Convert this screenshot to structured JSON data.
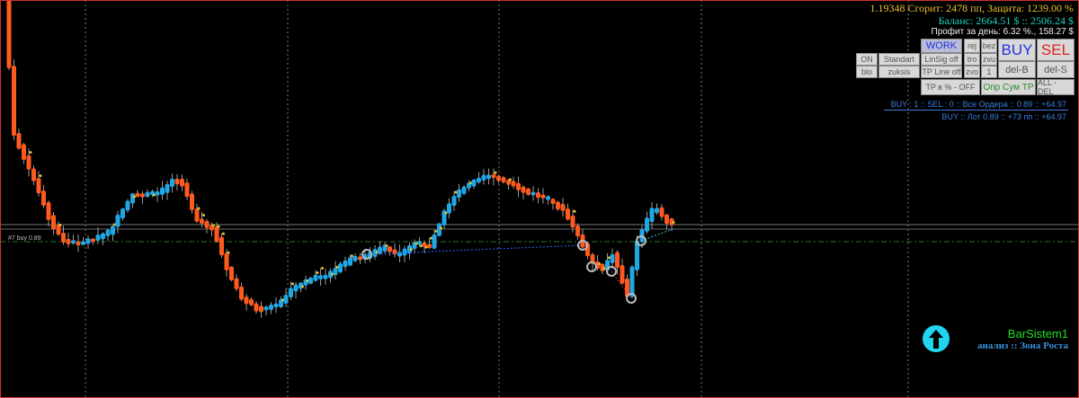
{
  "header": {
    "line1": "1.19348  Сгорит: 2478 пп, Защита: 1239.00 %",
    "line2": "Баланс: 2664.51 $   ::   2506.24 $",
    "line3": "Профит за день: 6.32 %.,  158.27 $"
  },
  "buttons": {
    "work": "WORK",
    "rej": "rej",
    "bez": "bez",
    "buy": "BUY",
    "sel": "SEL",
    "on": "ON",
    "standart": "Standart",
    "linsig": "LinSig off",
    "tro": "tro",
    "zvu": "zvu",
    "blo": "blo",
    "zuksis": "zuksis",
    "tpline": "TP Line off",
    "zvo": "zvo",
    "one": "1",
    "delb": "del-B",
    "dels": "del-S",
    "tppct": "TP в % - OFF",
    "oprsum": "Опр Сум TP",
    "alldel": "ALL - DEL"
  },
  "info": {
    "line1": "BUY : 1  ::  SEL : 0  ::  Все Ордера  ::  0.89  ::  +64.97",
    "line2": "BUY   ::  Лот 0.89  ::  +73 пп  ::  +64.97"
  },
  "order_label": "#7 buy 0.89",
  "brand": {
    "name": "BarSistem1",
    "subtitle": "анализ :: Зона Роста",
    "icon": "arrow-up-circle-icon"
  },
  "colors": {
    "bear": "#ff5a1e",
    "bull": "#1ea8e6",
    "accent": "#21d4f0",
    "brand": "#22dd22"
  }
}
